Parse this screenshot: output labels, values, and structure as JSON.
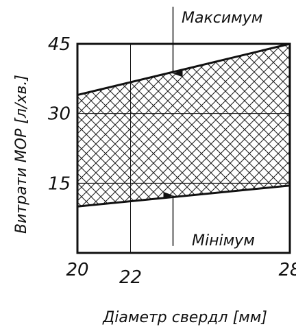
{
  "chart_data": {
    "type": "area",
    "title": "",
    "xlabel": "Діаметр свердл [мм]",
    "ylabel": "Витрати МОР [л/хв.]",
    "xlim": [
      20,
      28
    ],
    "ylim": [
      0,
      45
    ],
    "x_ticks": [
      20,
      22,
      28
    ],
    "x_tick_labels": [
      "20",
      "22",
      "28"
    ],
    "y_ticks": [
      15,
      30,
      45
    ],
    "y_tick_labels": [
      "15",
      "30",
      "45"
    ],
    "grid": true,
    "series": [
      {
        "name": "Максимум",
        "x": [
          20,
          28
        ],
        "y": [
          34,
          45
        ]
      },
      {
        "name": "Мінімум",
        "x": [
          20,
          28
        ],
        "y": [
          10,
          14.5
        ]
      }
    ],
    "fill": "cross-hatch",
    "annotations": [
      {
        "text": "Максимум",
        "x": 23.6,
        "y_from": 53,
        "y_to": 38.6,
        "direction": "down"
      },
      {
        "text": "Мінімум",
        "x": 23.6,
        "y_from": 1.5,
        "y_to": 12.4,
        "direction": "up"
      }
    ]
  }
}
